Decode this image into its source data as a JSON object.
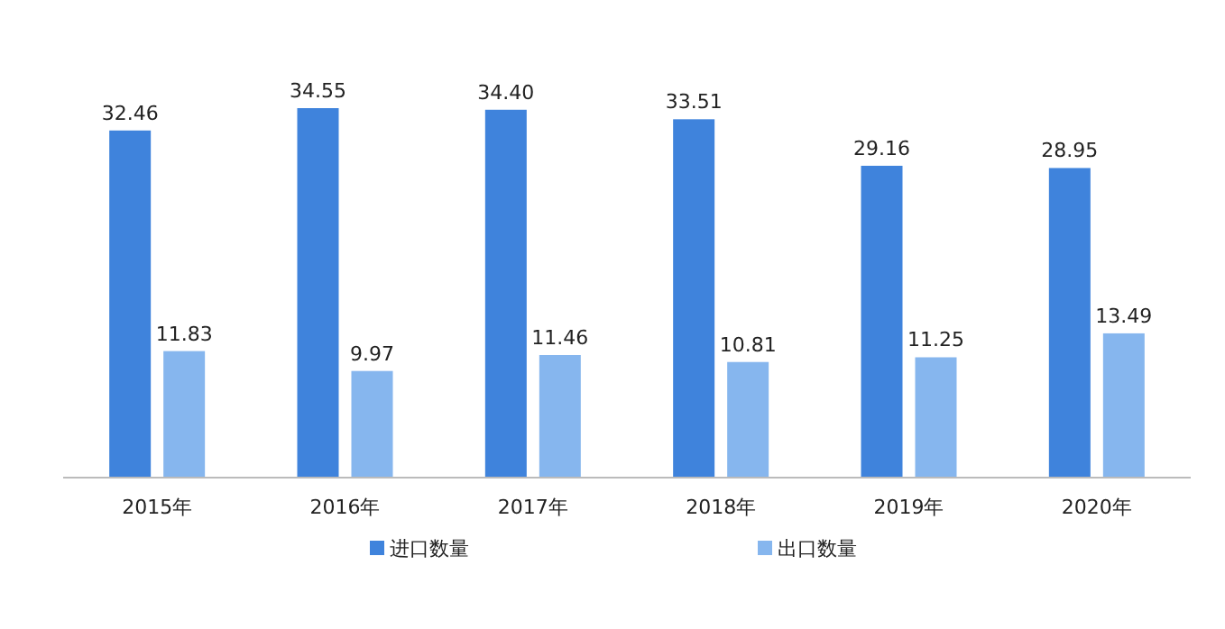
{
  "chart_data": {
    "type": "bar",
    "categories": [
      "2015年",
      "2016年",
      "2017年",
      "2018年",
      "2019年",
      "2020年"
    ],
    "series": [
      {
        "name": "进口数量",
        "color": "#3f83dc",
        "values": [
          32.46,
          34.55,
          34.4,
          33.51,
          29.16,
          28.95
        ],
        "value_labels": [
          "32.46",
          "34.55",
          "34.40",
          "33.51",
          "29.16",
          "28.95"
        ]
      },
      {
        "name": "出口数量",
        "color": "#86b6ee",
        "values": [
          11.83,
          9.97,
          11.46,
          10.81,
          11.25,
          13.49
        ],
        "value_labels": [
          "11.83",
          "9.97",
          "11.46",
          "10.81",
          "11.25",
          "13.49"
        ]
      }
    ],
    "legend": "bottom"
  }
}
